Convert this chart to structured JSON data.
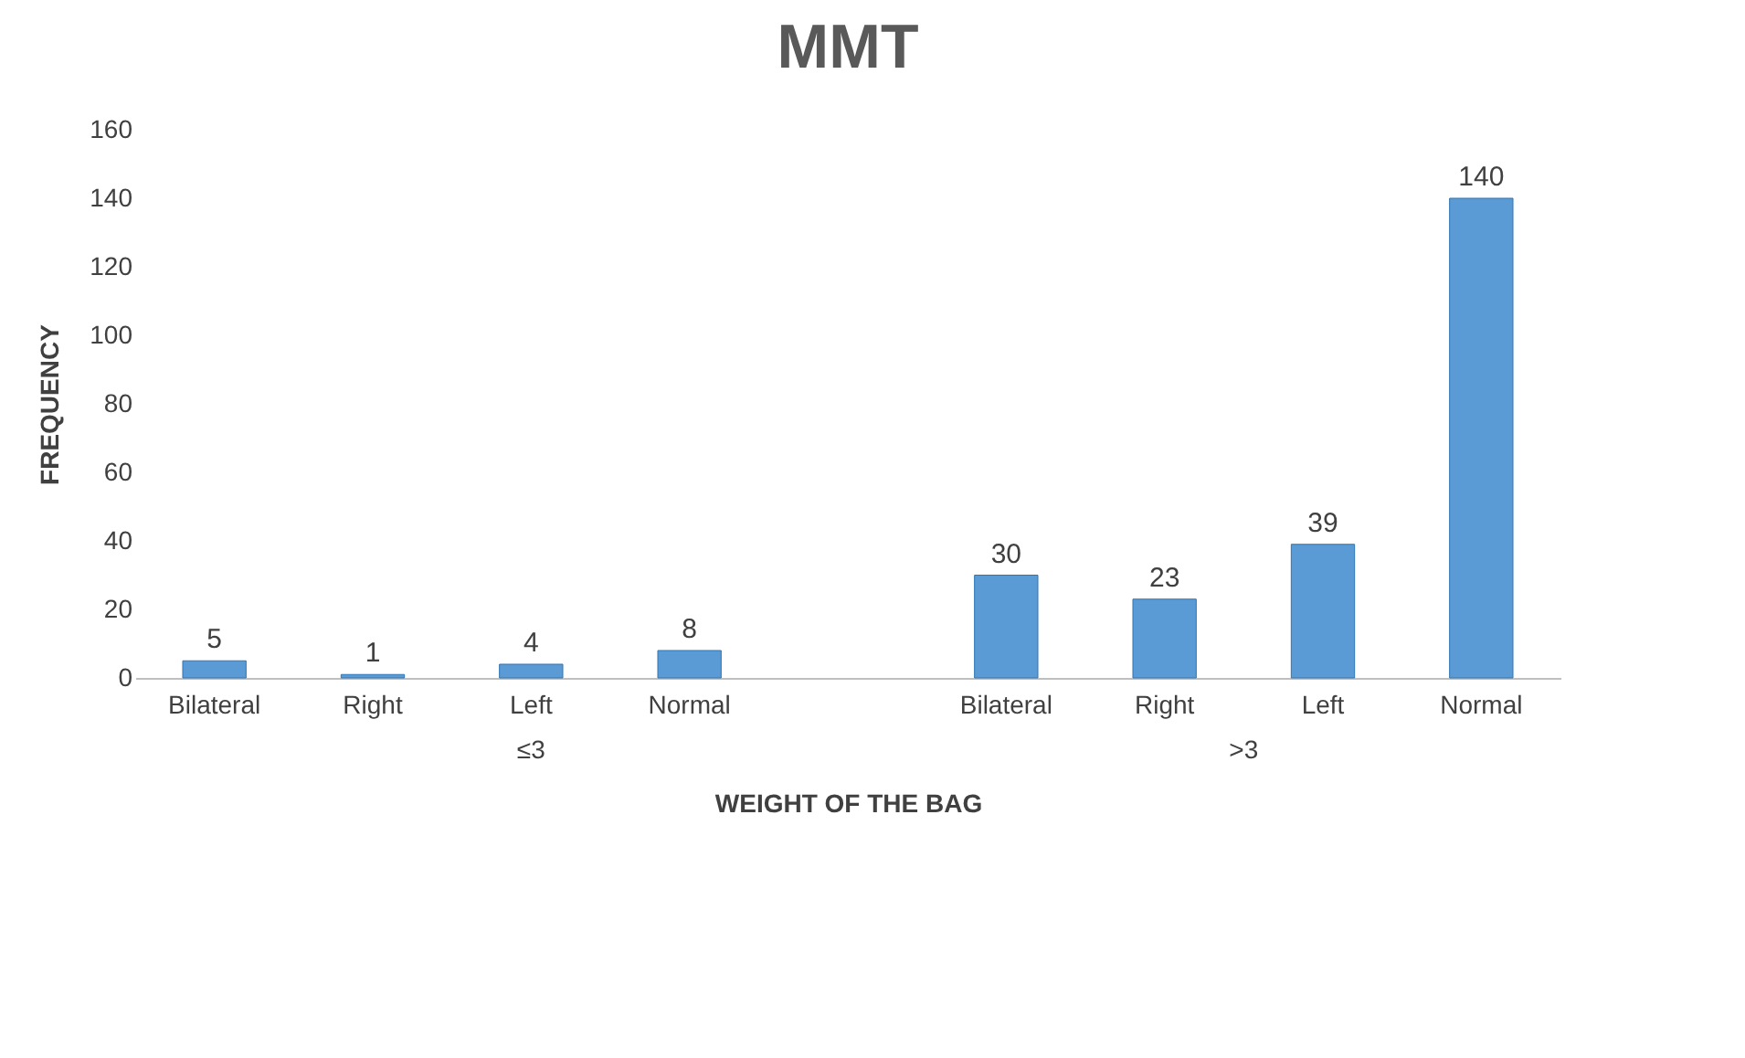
{
  "chart_data": {
    "type": "bar",
    "title": "MMT",
    "xlabel": "WEIGHT OF THE BAG",
    "ylabel": "FREQUENCY",
    "categories": [
      "Bilateral",
      "Right",
      "Left",
      "Normal",
      null,
      "Bilateral",
      "Right",
      "Left",
      "Normal"
    ],
    "values": [
      5,
      1,
      4,
      8,
      null,
      30,
      23,
      39,
      140
    ],
    "color": "#5b9bd5",
    "ylim": [
      0,
      160
    ],
    "yticks": [
      0,
      20,
      40,
      60,
      80,
      100,
      120,
      140,
      160
    ],
    "grid": false,
    "data_labels": true,
    "annotations": [
      "≤3",
      ">3"
    ]
  }
}
